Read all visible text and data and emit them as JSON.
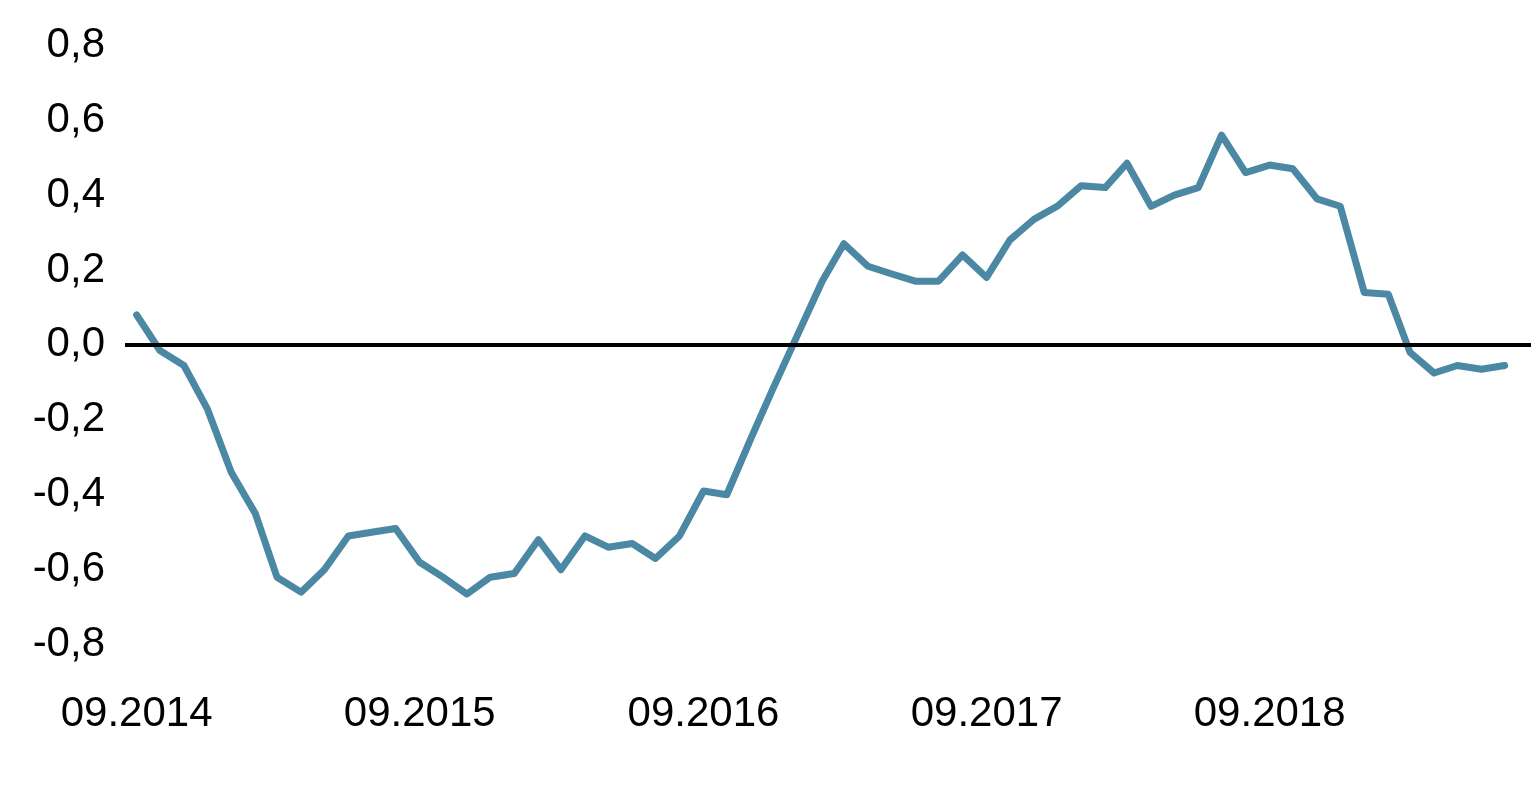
{
  "chart_data": {
    "type": "line",
    "x": [
      "2014-09",
      "2014-10",
      "2014-11",
      "2014-12",
      "2015-01",
      "2015-02",
      "2015-03",
      "2015-04",
      "2015-05",
      "2015-06",
      "2015-07",
      "2015-08",
      "2015-09",
      "2015-10",
      "2015-11",
      "2015-12",
      "2016-01",
      "2016-02",
      "2016-03",
      "2016-04",
      "2016-05",
      "2016-06",
      "2016-07",
      "2016-08",
      "2016-09",
      "2016-10",
      "2016-11",
      "2016-12",
      "2017-01",
      "2017-02",
      "2017-03",
      "2017-04",
      "2017-05",
      "2017-06",
      "2017-07",
      "2017-08",
      "2017-09",
      "2017-10",
      "2017-11",
      "2017-12",
      "2018-01",
      "2018-02",
      "2018-03",
      "2018-04",
      "2018-05",
      "2018-06",
      "2018-07",
      "2018-08",
      "2018-09",
      "2018-10",
      "2018-11",
      "2018-12",
      "2019-01",
      "2019-02",
      "2019-03",
      "2019-04",
      "2019-05",
      "2019-06",
      "2019-07"
    ],
    "series": [
      {
        "color": "#4a88a3",
        "values": [
          0.08,
          -0.015,
          -0.055,
          -0.17,
          -0.34,
          -0.45,
          -0.62,
          -0.66,
          -0.6,
          -0.51,
          -0.5,
          -0.49,
          -0.58,
          -0.62,
          -0.665,
          -0.62,
          -0.61,
          -0.52,
          -0.6,
          -0.51,
          -0.54,
          -0.53,
          -0.57,
          -0.51,
          -0.39,
          -0.4,
          -0.25,
          -0.11,
          0.03,
          0.17,
          0.27,
          0.21,
          0.19,
          0.17,
          0.17,
          0.24,
          0.18,
          0.28,
          0.335,
          0.37,
          0.425,
          0.42,
          0.485,
          0.37,
          0.4,
          0.42,
          0.56,
          0.46,
          0.48,
          0.47,
          0.39,
          0.37,
          0.14,
          0.135,
          -0.02,
          -0.075,
          -0.055,
          -0.065,
          -0.055
        ]
      }
    ],
    "xlim": [
      "2014-08-17",
      "2019-08-04"
    ],
    "xticks": [
      {
        "value": "2014-09",
        "label": "09.2014"
      },
      {
        "value": "2015-09",
        "label": "09.2015"
      },
      {
        "value": "2016-09",
        "label": "09.2016"
      },
      {
        "value": "2017-09",
        "label": "09.2017"
      },
      {
        "value": "2018-09",
        "label": "09.2018"
      }
    ],
    "ylim": [
      -0.8,
      0.8
    ],
    "yticks": [
      {
        "value": -0.8,
        "label": "-0,8"
      },
      {
        "value": -0.6,
        "label": "-0,6"
      },
      {
        "value": -0.4,
        "label": "-0,4"
      },
      {
        "value": -0.2,
        "label": "-0,2"
      },
      {
        "value": 0,
        "label": "0,0"
      },
      {
        "value": 0.2,
        "label": "0,2"
      },
      {
        "value": 0.4,
        "label": "0,4"
      },
      {
        "value": 0.6,
        "label": "0,6"
      },
      {
        "value": 0.8,
        "label": "0,8"
      }
    ],
    "ref_lines": [
      {
        "axis": "y",
        "value": 0,
        "color": "#000000"
      }
    ],
    "grid": false,
    "legend": false,
    "marker": "none",
    "line_style": "solid"
  }
}
